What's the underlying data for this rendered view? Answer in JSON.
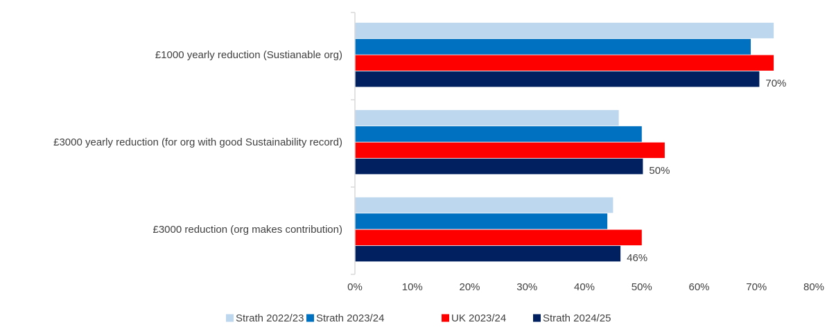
{
  "chart_data": {
    "type": "bar",
    "orientation": "horizontal",
    "categories": [
      "£1000 yearly reduction (Sustianable org)",
      "£3000 yearly reduction (for org with good Sustainability record)",
      "£3000 reduction (org makes contribution)"
    ],
    "series": [
      {
        "name": "Strath 2022/23",
        "color": "#BDD7EE",
        "values": [
          73,
          46,
          45
        ]
      },
      {
        "name": "Strath 2023/24",
        "color": "#0070C0",
        "values": [
          69,
          50,
          44
        ]
      },
      {
        "name": "UK 2023/24",
        "color": "#FF0000",
        "values": [
          73,
          54,
          50
        ]
      },
      {
        "name": "Strath 2024/25",
        "color": "#002060",
        "values": [
          70.5,
          50.2,
          46.3
        ]
      }
    ],
    "data_labels": [
      {
        "series": "Strath 2024/25",
        "category_index": 0,
        "text": "70%"
      },
      {
        "series": "Strath 2024/25",
        "category_index": 1,
        "text": "50%"
      },
      {
        "series": "Strath 2024/25",
        "category_index": 2,
        "text": "46%"
      }
    ],
    "xticks": [
      "0%",
      "10%",
      "20%",
      "30%",
      "40%",
      "50%",
      "60%",
      "70%",
      "80%"
    ],
    "xlim": [
      0,
      80
    ],
    "grid": false,
    "legend_position": "bottom",
    "title": "",
    "xlabel": "",
    "ylabel": ""
  }
}
